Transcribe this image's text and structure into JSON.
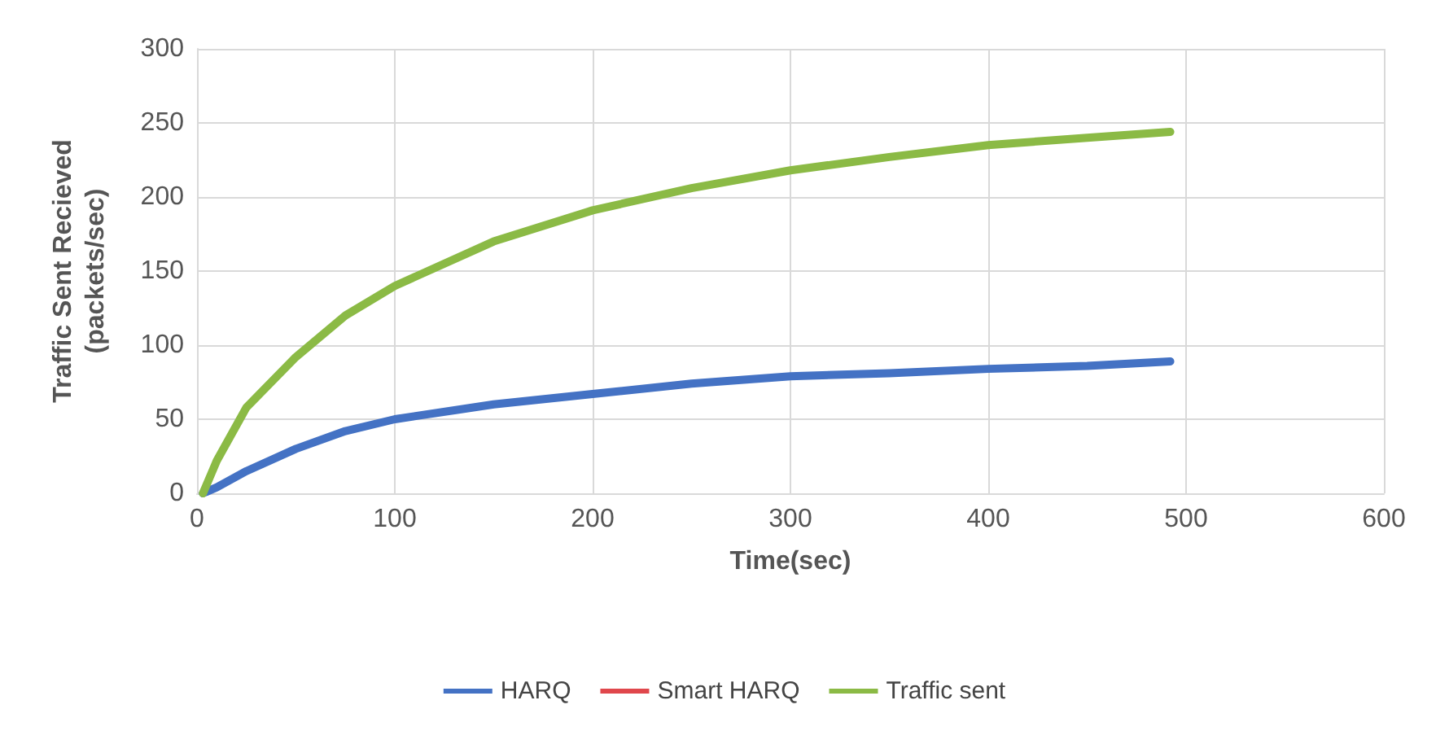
{
  "chart_data": {
    "type": "line",
    "xlabel": "Time(sec)",
    "ylabel": "Traffic Sent Recieved\n(packets/sec)",
    "x": [
      3,
      10,
      25,
      50,
      75,
      100,
      150,
      200,
      250,
      300,
      350,
      400,
      450,
      492
    ],
    "series": [
      {
        "name": "HARQ",
        "color": "#4472c4",
        "values": [
          0,
          4,
          15,
          30,
          42,
          50,
          60,
          67,
          74,
          79,
          81,
          84,
          86,
          89
        ]
      },
      {
        "name": "Smart HARQ",
        "color": "#e0474c",
        "values": [
          null,
          null,
          null,
          null,
          null,
          null,
          null,
          null,
          null,
          null,
          null,
          null,
          null,
          null
        ]
      },
      {
        "name": "Traffic sent",
        "color": "#8bba45",
        "values": [
          0,
          22,
          58,
          92,
          120,
          140,
          170,
          191,
          206,
          218,
          227,
          235,
          240,
          244
        ]
      }
    ],
    "xlim": [
      0,
      600
    ],
    "xticks": [
      0,
      100,
      200,
      300,
      400,
      500,
      600
    ],
    "ylim": [
      0,
      300
    ],
    "yticks": [
      0,
      50,
      100,
      150,
      200,
      250,
      300
    ],
    "grid": true,
    "legend": "bottom",
    "marker": "none",
    "line_style": "solid"
  }
}
